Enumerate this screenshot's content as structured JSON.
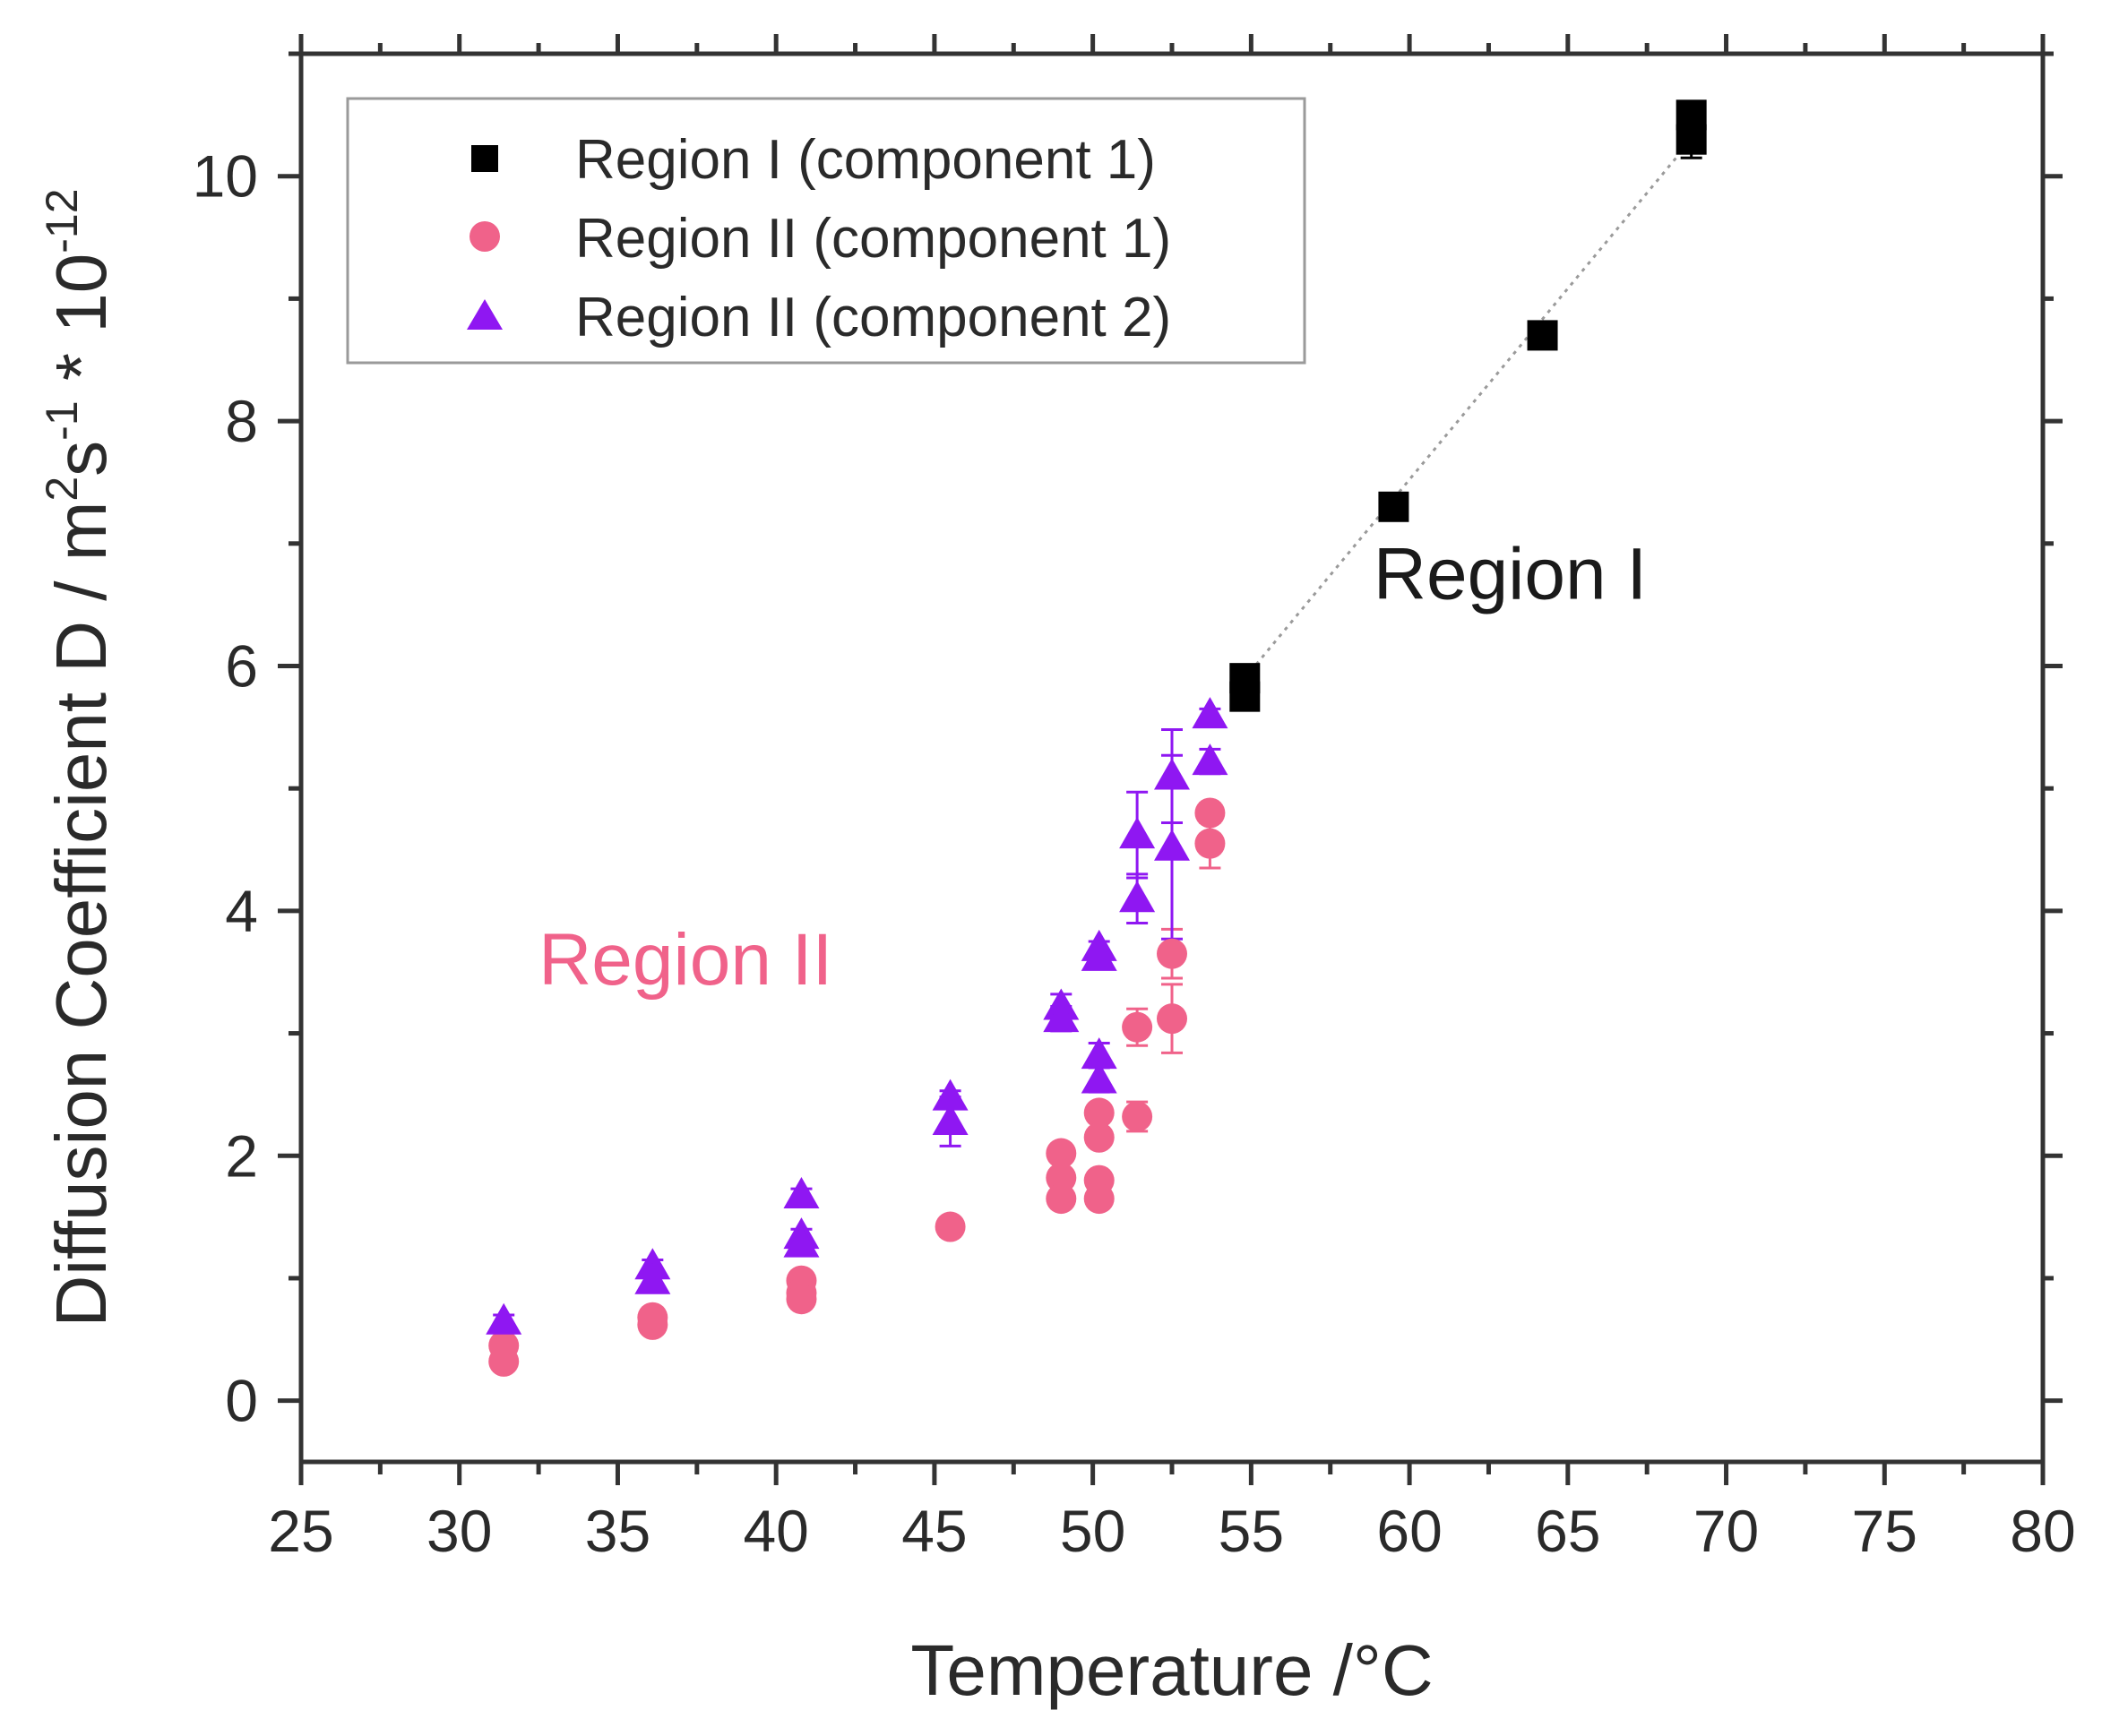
{
  "chart_data": {
    "type": "scatter",
    "xlabel": "Temperature /°C",
    "ylabel": {
      "main": "Diffusion Coefficient D / m",
      "sup1": "2",
      "mid": "s",
      "sup2": "-1",
      "tail": " * 10",
      "sup3": "-12"
    },
    "xlim": [
      25,
      80
    ],
    "ylim": [
      -0.5,
      11
    ],
    "xticks": [
      25,
      30,
      35,
      40,
      45,
      50,
      55,
      60,
      65,
      70,
      75,
      80
    ],
    "yticks": [
      0,
      2,
      4,
      6,
      8,
      10
    ],
    "legend_position": "top-left",
    "colors": {
      "region1": "#000000",
      "region2_c1": "#f0628a",
      "region2_c2": "#8f17f2"
    },
    "series": [
      {
        "name": "Region I (component 1)",
        "marker": "square",
        "color": "#000000",
        "fit_line": true,
        "points": [
          {
            "x": 54.8,
            "y": 5.9,
            "err": 0.05
          },
          {
            "x": 54.8,
            "y": 5.75,
            "err": 0.05
          },
          {
            "x": 59.5,
            "y": 7.3,
            "err": 0.05
          },
          {
            "x": 64.2,
            "y": 8.7,
            "err": 0.05
          },
          {
            "x": 68.9,
            "y": 10.5,
            "err": 0.1
          },
          {
            "x": 68.9,
            "y": 10.3,
            "err": 0.15
          }
        ]
      },
      {
        "name": "Region II (component 1)",
        "marker": "circle",
        "color": "#f0628a",
        "points": [
          {
            "x": 31.4,
            "y": 0.45,
            "err": 0.05
          },
          {
            "x": 31.4,
            "y": 0.32,
            "err": 0.05
          },
          {
            "x": 36.1,
            "y": 0.68,
            "err": 0.05
          },
          {
            "x": 36.1,
            "y": 0.62,
            "err": 0.05
          },
          {
            "x": 40.8,
            "y": 0.98,
            "err": 0.05
          },
          {
            "x": 40.8,
            "y": 0.88,
            "err": 0.05
          },
          {
            "x": 40.8,
            "y": 0.83,
            "err": 0.05
          },
          {
            "x": 45.5,
            "y": 1.42,
            "err": 0.05
          },
          {
            "x": 49.0,
            "y": 2.02,
            "err": 0.05
          },
          {
            "x": 49.0,
            "y": 1.82,
            "err": 0.05
          },
          {
            "x": 49.0,
            "y": 1.65,
            "err": 0.05
          },
          {
            "x": 50.2,
            "y": 2.35,
            "err": 0.05
          },
          {
            "x": 50.2,
            "y": 2.15,
            "err": 0.05
          },
          {
            "x": 50.2,
            "y": 1.8,
            "err": 0.05
          },
          {
            "x": 50.2,
            "y": 1.65,
            "err": 0.05
          },
          {
            "x": 51.4,
            "y": 3.05,
            "err": 0.15
          },
          {
            "x": 51.4,
            "y": 2.32,
            "err": 0.12
          },
          {
            "x": 52.5,
            "y": 3.65,
            "err": 0.2
          },
          {
            "x": 52.5,
            "y": 3.12,
            "err": 0.28
          },
          {
            "x": 53.7,
            "y": 4.8,
            "err": 0.08
          },
          {
            "x": 53.7,
            "y": 4.55,
            "err": 0.2
          }
        ]
      },
      {
        "name": "Region II (component 2)",
        "marker": "triangle",
        "color": "#8f17f2",
        "points": [
          {
            "x": 31.4,
            "y": 0.65,
            "err": 0.05
          },
          {
            "x": 36.1,
            "y": 1.1,
            "err": 0.05
          },
          {
            "x": 36.1,
            "y": 0.98,
            "err": 0.05
          },
          {
            "x": 40.8,
            "y": 1.68,
            "err": 0.05
          },
          {
            "x": 40.8,
            "y": 1.35,
            "err": 0.05
          },
          {
            "x": 40.8,
            "y": 1.28,
            "err": 0.05
          },
          {
            "x": 45.5,
            "y": 2.48,
            "err": 0.05
          },
          {
            "x": 45.5,
            "y": 2.28,
            "err": 0.2
          },
          {
            "x": 49.0,
            "y": 3.22,
            "err": 0.1
          },
          {
            "x": 49.0,
            "y": 3.12,
            "err": 0.1
          },
          {
            "x": 50.2,
            "y": 3.7,
            "err": 0.05
          },
          {
            "x": 50.2,
            "y": 3.62,
            "err": 0.05
          },
          {
            "x": 50.2,
            "y": 2.82,
            "err": 0.1
          },
          {
            "x": 50.2,
            "y": 2.62,
            "err": 0.1
          },
          {
            "x": 51.4,
            "y": 4.62,
            "err": 0.35
          },
          {
            "x": 51.4,
            "y": 4.1,
            "err": 0.2
          },
          {
            "x": 52.5,
            "y": 5.1,
            "err": 0.38
          },
          {
            "x": 52.5,
            "y": 4.52,
            "err": 0.75
          },
          {
            "x": 53.7,
            "y": 5.6,
            "err": 0.05
          },
          {
            "x": 53.7,
            "y": 5.22,
            "err": 0.1
          }
        ]
      }
    ],
    "annotations": [
      {
        "text": "Region I",
        "x": 67.5,
        "y": 6.55,
        "color": "#1a1a1a"
      },
      {
        "text": "Region II",
        "x": 32.5,
        "y": 3.4,
        "color": "#f0628a"
      }
    ]
  }
}
